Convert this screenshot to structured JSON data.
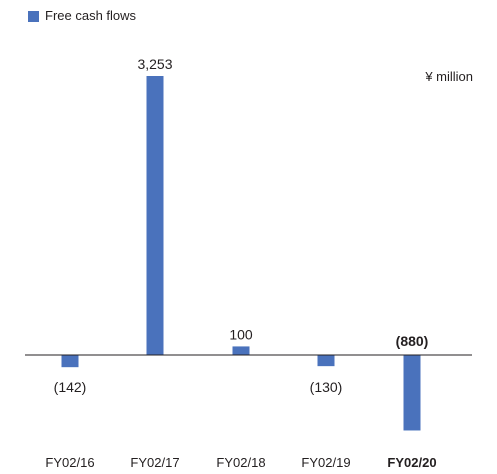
{
  "chart_data": {
    "type": "bar",
    "title": "",
    "xlabel": "",
    "ylabel": "",
    "unit": "¥ million",
    "categories": [
      "FY02/16",
      "FY02/17",
      "FY02/18",
      "FY02/19",
      "FY02/20"
    ],
    "series": [
      {
        "name": "Free cash flows",
        "values": [
          -142,
          3253,
          100,
          -130,
          -880
        ],
        "data_labels": [
          "(142)",
          "3,253",
          "100",
          "(130)",
          "(880)"
        ]
      }
    ],
    "highlight_index": 4,
    "ylim": [
      -880,
      3253
    ],
    "grid": false,
    "legend_position": "top-left",
    "colors": {
      "bar": "#4a72bc",
      "axis": "#231f20",
      "text": "#231f20"
    }
  }
}
